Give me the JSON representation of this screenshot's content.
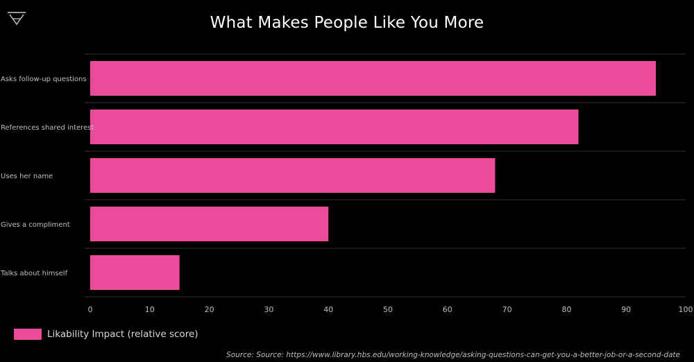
{
  "chart_data": {
    "type": "bar",
    "orientation": "horizontal",
    "title": "What Makes People Like You More",
    "categories": [
      "Asks follow-up questions",
      "References shared interest",
      "Uses her name",
      "Gives a compliment",
      "Talks about himself"
    ],
    "values": [
      95,
      82,
      68,
      40,
      15
    ],
    "xlim": [
      0,
      100
    ],
    "x_ticks": [
      "0",
      "10",
      "20",
      "30",
      "40",
      "50",
      "60",
      "70",
      "80",
      "90",
      "100"
    ],
    "series_name": "Likability Impact (relative score)",
    "legend_position": "bottom-left",
    "grid": "horizontal separators",
    "bar_color": "#ec4b9c",
    "background_color": "#000000"
  },
  "legend": {
    "label": "Likability Impact (relative score)"
  },
  "source": "Source: Source: https://www.library.hbs.edu/working-knowledge/asking-questions-can-get-you-a-better-job-or-a-second-date",
  "logo": {
    "icon": "triangle-logo-icon"
  }
}
